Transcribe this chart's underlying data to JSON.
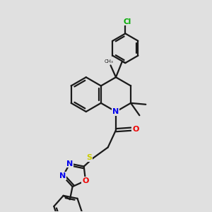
{
  "background_color": "#e0e0e0",
  "bond_color": "#1a1a1a",
  "atom_colors": {
    "N": "#0000ee",
    "O": "#ee0000",
    "S": "#cccc00",
    "Cl": "#00aa00",
    "C": "#1a1a1a"
  },
  "figsize": [
    3.0,
    3.0
  ],
  "dpi": 100
}
